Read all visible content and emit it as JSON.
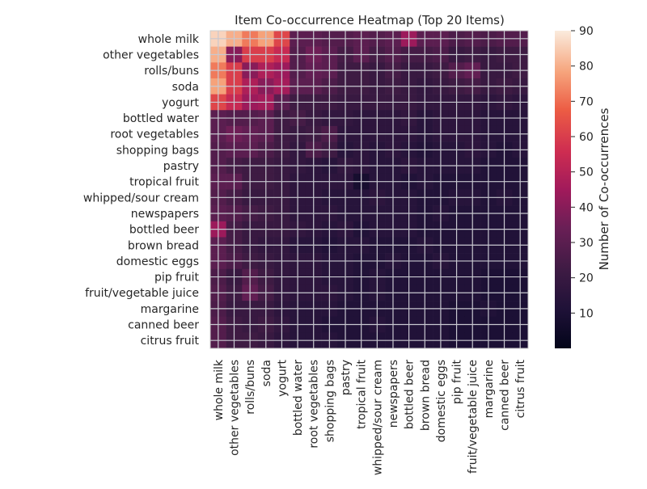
{
  "chart_data": {
    "type": "heatmap",
    "title": "Item Co-occurrence Heatmap (Top 20 Items)",
    "colorbar_label": "Number of Co-occurrences",
    "colorbar_range": [
      0,
      90
    ],
    "colorbar_ticks": [
      10,
      20,
      30,
      40,
      50,
      60,
      70,
      80,
      90
    ],
    "row_labels": [
      "whole milk",
      "other vegetables",
      "rolls/buns",
      "soda",
      "yogurt",
      "bottled water",
      "root vegetables",
      "shopping bags",
      "pastry",
      "tropical fruit",
      "whipped/sour cream",
      "newspapers",
      "bottled beer",
      "brown bread",
      "domestic eggs",
      "pip fruit",
      "fruit/vegetable juice",
      "margarine",
      "canned beer",
      "citrus fruit"
    ],
    "col_labels": [
      "whole milk",
      "other vegetables",
      "rolls/buns",
      "soda",
      "yogurt",
      "bottled water",
      "root vegetables",
      "shopping bags",
      "pastry",
      "tropical fruit",
      "whipped/sour cream",
      "newspapers",
      "bottled beer",
      "brown bread",
      "domestic eggs",
      "pip fruit",
      "fruit/vegetable juice",
      "margarine",
      "canned beer",
      "citrus fruit"
    ],
    "values": [
      [
        86,
        80,
        72,
        78,
        62,
        30,
        30,
        28,
        28,
        30,
        28,
        30,
        44,
        30,
        30,
        26,
        28,
        26,
        28,
        28
      ],
      [
        80,
        40,
        60,
        60,
        54,
        28,
        35,
        30,
        24,
        30,
        24,
        28,
        24,
        24,
        26,
        20,
        22,
        20,
        22,
        22
      ],
      [
        72,
        60,
        40,
        48,
        44,
        28,
        32,
        30,
        22,
        22,
        20,
        24,
        20,
        20,
        22,
        28,
        32,
        20,
        20,
        22
      ],
      [
        78,
        60,
        48,
        40,
        46,
        30,
        30,
        26,
        22,
        22,
        20,
        22,
        20,
        18,
        20,
        22,
        24,
        20,
        22,
        20
      ],
      [
        62,
        54,
        44,
        46,
        30,
        22,
        22,
        22,
        20,
        20,
        20,
        20,
        20,
        18,
        18,
        18,
        18,
        16,
        18,
        16
      ],
      [
        30,
        28,
        28,
        30,
        22,
        24,
        20,
        18,
        18,
        16,
        16,
        16,
        18,
        14,
        16,
        16,
        16,
        14,
        14,
        14
      ],
      [
        30,
        35,
        32,
        30,
        22,
        20,
        22,
        26,
        16,
        16,
        16,
        16,
        16,
        14,
        16,
        16,
        16,
        14,
        14,
        14
      ],
      [
        28,
        30,
        30,
        26,
        22,
        18,
        26,
        22,
        14,
        16,
        14,
        16,
        14,
        12,
        14,
        14,
        16,
        14,
        12,
        14
      ],
      [
        28,
        24,
        22,
        22,
        20,
        18,
        16,
        14,
        18,
        16,
        14,
        14,
        16,
        14,
        14,
        14,
        14,
        12,
        12,
        12
      ],
      [
        30,
        30,
        22,
        22,
        20,
        16,
        16,
        16,
        16,
        8,
        14,
        14,
        12,
        14,
        12,
        12,
        12,
        12,
        12,
        12
      ],
      [
        28,
        24,
        20,
        20,
        20,
        16,
        16,
        14,
        14,
        14,
        16,
        14,
        14,
        12,
        12,
        14,
        14,
        12,
        14,
        12
      ],
      [
        30,
        28,
        24,
        22,
        20,
        16,
        16,
        16,
        14,
        14,
        14,
        14,
        14,
        12,
        14,
        12,
        12,
        12,
        12,
        12
      ],
      [
        44,
        24,
        20,
        20,
        20,
        18,
        16,
        14,
        16,
        12,
        14,
        14,
        14,
        12,
        12,
        12,
        12,
        12,
        12,
        12
      ],
      [
        30,
        24,
        20,
        18,
        18,
        14,
        14,
        12,
        14,
        14,
        12,
        12,
        12,
        14,
        12,
        12,
        12,
        12,
        12,
        12
      ],
      [
        30,
        26,
        22,
        20,
        18,
        16,
        16,
        14,
        14,
        12,
        12,
        14,
        12,
        12,
        14,
        12,
        12,
        12,
        12,
        12
      ],
      [
        26,
        20,
        28,
        22,
        18,
        16,
        16,
        14,
        14,
        12,
        14,
        12,
        12,
        12,
        12,
        12,
        12,
        10,
        10,
        10
      ],
      [
        28,
        22,
        32,
        24,
        18,
        16,
        16,
        16,
        14,
        12,
        14,
        12,
        12,
        12,
        12,
        12,
        12,
        10,
        10,
        10
      ],
      [
        26,
        20,
        20,
        20,
        16,
        14,
        14,
        14,
        12,
        12,
        12,
        12,
        12,
        12,
        12,
        10,
        10,
        12,
        10,
        10
      ],
      [
        28,
        22,
        20,
        22,
        18,
        14,
        14,
        12,
        12,
        12,
        14,
        12,
        12,
        12,
        12,
        10,
        10,
        10,
        10,
        10
      ],
      [
        28,
        22,
        22,
        20,
        16,
        14,
        14,
        14,
        12,
        12,
        12,
        12,
        12,
        12,
        12,
        10,
        10,
        10,
        10,
        10
      ]
    ]
  }
}
